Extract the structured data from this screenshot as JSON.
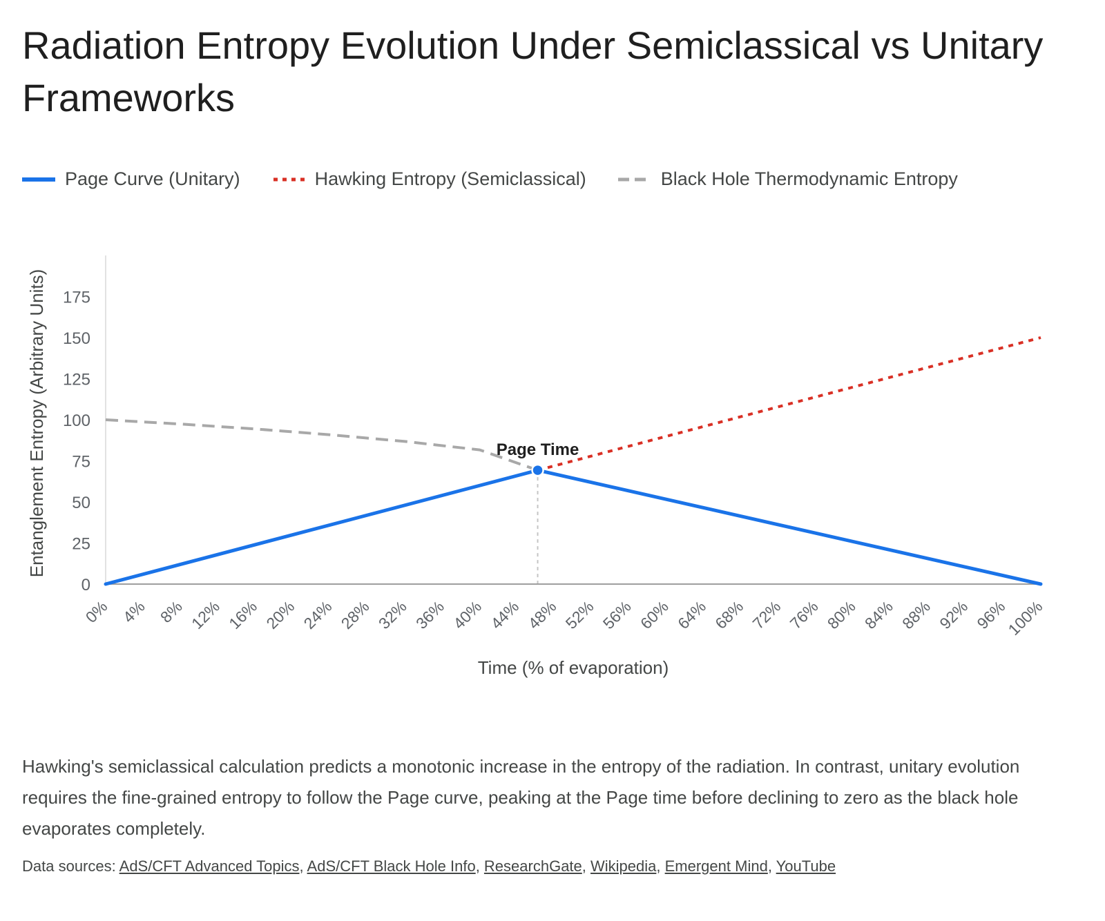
{
  "title": "Radiation Entropy Evolution Under Semiclassical vs Unitary Frameworks",
  "legend": [
    {
      "label": "Page Curve (Unitary)",
      "color": "#1a73e8",
      "style": "solid"
    },
    {
      "label": "Hawking Entropy (Semiclassical)",
      "color": "#d93025",
      "style": "dotted"
    },
    {
      "label": "Black Hole Thermodynamic Entropy",
      "color": "#a8a8a8",
      "style": "dashed"
    }
  ],
  "caption": "Hawking's semiclassical calculation predicts a monotonic increase in the entropy of the radiation. In contrast, unitary evolution requires the fine-grained entropy to follow the Page curve, peaking at the Page time before declining to zero as the black hole evaporates completely.",
  "sources": {
    "prefix": "Data sources: ",
    "links": [
      "AdS/CFT Advanced Topics",
      "AdS/CFT Black Hole Info",
      "ResearchGate",
      "Wikipedia",
      "Emergent Mind",
      "YouTube"
    ]
  },
  "chart_data": {
    "type": "line",
    "xlabel": "Time (% of evaporation)",
    "ylabel": "Entanglement Entropy (Arbitrary Units)",
    "xlim": [
      0,
      100
    ],
    "ylim": [
      0,
      200
    ],
    "x_ticks": [
      "0%",
      "4%",
      "8%",
      "12%",
      "16%",
      "20%",
      "24%",
      "28%",
      "32%",
      "36%",
      "40%",
      "44%",
      "48%",
      "52%",
      "56%",
      "60%",
      "64%",
      "68%",
      "72%",
      "76%",
      "80%",
      "84%",
      "88%",
      "92%",
      "96%",
      "100%"
    ],
    "y_ticks": [
      0,
      25,
      50,
      75,
      100,
      125,
      150,
      175
    ],
    "legend_position": "top",
    "series": [
      {
        "name": "Page Curve (Unitary)",
        "color": "#1a73e8",
        "style": "solid",
        "x": [
          0,
          46.2,
          100
        ],
        "y": [
          0,
          69.3,
          0
        ]
      },
      {
        "name": "Hawking Entropy (Semiclassical)",
        "color": "#d93025",
        "style": "dotted",
        "x": [
          46.2,
          100
        ],
        "y": [
          69.3,
          150
        ]
      },
      {
        "name": "Black Hole Thermodynamic Entropy",
        "color": "#a8a8a8",
        "style": "dashed",
        "x": [
          0,
          8,
          16,
          24,
          32,
          40,
          46.2
        ],
        "y": [
          100,
          97.4,
          94.4,
          90.9,
          86.8,
          81.7,
          69.3
        ]
      }
    ],
    "annotations": [
      {
        "text": "Page Time",
        "x": 46.2,
        "y": 69.3
      }
    ]
  }
}
